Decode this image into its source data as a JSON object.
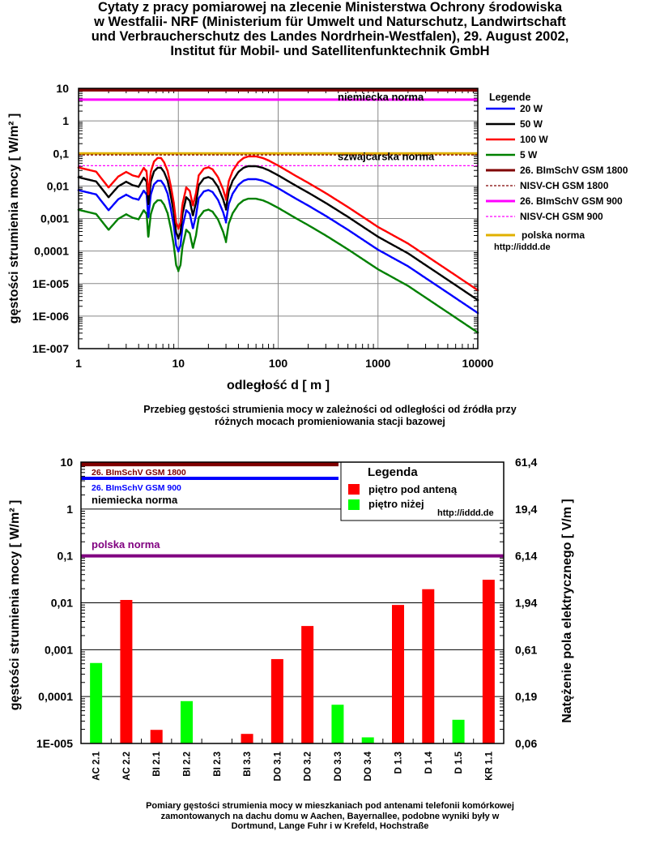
{
  "title_lines": [
    "Cytaty z pracy pomiarowej na zlecenie Ministerstwa Ochrony środowiska",
    "w Westfalii- NRF (Ministerium für Umwelt und Naturschutz, Landwirtschaft",
    "und Verbraucherschutz des Landes Nordrhein-Westfalen), 29. August 2002,",
    "Institut für Mobil- und Satellitenfunktechnik GmbH"
  ],
  "caption1_lines": [
    "Przebieg gęstości strumienia mocy w zależności od odległości od źródła przy",
    "różnych mocach promieniowania stacji bazowej"
  ],
  "caption2_lines": [
    "Pomiary gęstości strumienia mocy w mieszkaniach pod antenami telefonii komórkowej",
    "zamontowanych na dachu domu w Aachen, Bayernallee, podobne wyniki były w",
    "Dortmund, Lange Fuhr i w Krefeld, Hochstraße"
  ],
  "chart_data": [
    {
      "type": "line",
      "title": "",
      "xlabel": "odległość d [ m ]",
      "ylabel": "gęstości strumienia mocy [ W/m² ]",
      "xscale": "log",
      "yscale": "log",
      "xlim": [
        1,
        10000
      ],
      "ylim": [
        1e-07,
        10
      ],
      "xticks": [
        "1",
        "10",
        "100",
        "1000",
        "10000"
      ],
      "yticks": [
        "10",
        "1",
        "0,1",
        "0,01",
        "0,001",
        "0,0001",
        "1E-005",
        "1E-006",
        "1E-007"
      ],
      "grid": true,
      "legend_title": "Legende",
      "legend_url": "http://iddd.de",
      "annotations": [
        "niemiecka norma",
        "szwajcarska norma"
      ],
      "base_profile": {
        "x": [
          1,
          1.5,
          2,
          2.5,
          3,
          3.5,
          4,
          4.5,
          4.8,
          5,
          5.3,
          5.7,
          6.2,
          6.7,
          7.2,
          7.8,
          8.4,
          9,
          9.5,
          10,
          10.5,
          11,
          12,
          13,
          14,
          15,
          16,
          18,
          20,
          22,
          25,
          28,
          30,
          32,
          35,
          40,
          45,
          50,
          60,
          70,
          80,
          100,
          150,
          200,
          300,
          500,
          1000,
          2000,
          5000,
          10000
        ],
        "y": [
          0.0074,
          0.0055,
          0.0018,
          0.0039,
          0.0054,
          0.0042,
          0.0038,
          0.0072,
          0.0055,
          0.0011,
          0.0055,
          0.0112,
          0.0145,
          0.0145,
          0.0106,
          0.0058,
          0.002,
          0.0006,
          0.00015,
          0.0001,
          0.00015,
          0.00055,
          0.0018,
          0.0014,
          0.0005,
          0.0012,
          0.0042,
          0.0068,
          0.0075,
          0.0065,
          0.0037,
          0.0016,
          0.0008,
          0.0028,
          0.0058,
          0.0108,
          0.0145,
          0.0162,
          0.0162,
          0.0145,
          0.0122,
          0.0085,
          0.0041,
          0.0025,
          0.0012,
          0.00045,
          0.00011,
          3.4e-05,
          5.2e-06,
          1.25e-06
        ]
      },
      "series": [
        {
          "name": "20 W",
          "color": "#0000ff",
          "scale": 1
        },
        {
          "name": "50 W",
          "color": "#000000",
          "scale": 2.5
        },
        {
          "name": "100 W",
          "color": "#ff0000",
          "scale": 5
        },
        {
          "name": "5 W",
          "color": "#008000",
          "scale": 0.25
        }
      ],
      "reference_lines": [
        {
          "name": "26. BImSchV GSM 1800",
          "value": 9,
          "color": "#800000",
          "style": "solid"
        },
        {
          "name": "NISV-CH GSM 1800",
          "value": 0.09,
          "color": "#800000",
          "style": "dashed"
        },
        {
          "name": "26. BImSchV GSM 900",
          "value": 4.5,
          "color": "#ff00ff",
          "style": "solid"
        },
        {
          "name": "NISV-CH GSM 900",
          "value": 0.042,
          "color": "#ff00ff",
          "style": "dashed"
        },
        {
          "name": "polska norma",
          "value": 0.1,
          "color": "#e0b000",
          "style": "solid"
        }
      ]
    },
    {
      "type": "bar",
      "ylabel": "gęstości strumienia mocy [ W/m² ]",
      "ylabel_right": "Natężenie pola elektrycznego [ V/m ]",
      "yscale": "log",
      "ylim": [
        1e-05,
        10
      ],
      "yticks": [
        "10",
        "1",
        "0,1",
        "0,01",
        "0,001",
        "0,0001",
        "1E-005"
      ],
      "yticks_right": [
        "61,4",
        "19,4",
        "6,14",
        "1,94",
        "0,61",
        "0,19",
        "0,06"
      ],
      "legend_title": "Legenda",
      "legend_url": "http://iddd.de",
      "annotations": [
        "niemiecka norma"
      ],
      "categories": [
        "AC 2.1",
        "AC 2.2",
        "BI 2.1",
        "BI 2.2",
        "BI 2.3",
        "BI 3.3",
        "DO 3.1",
        "DO 3.2",
        "DO 3.3",
        "DO 3.4",
        "D 1.3",
        "D 1.4",
        "D 1.5",
        "KR 1.1"
      ],
      "series_names": [
        "piętro pod anteną",
        "piętro niżej"
      ],
      "series_colors": [
        "#ff0000",
        "#00ff00"
      ],
      "bars": [
        {
          "category": "AC 2.1",
          "series": "piętro niżej",
          "value": 0.00052
        },
        {
          "category": "AC 2.2",
          "series": "piętro pod anteną",
          "value": 0.0115
        },
        {
          "category": "BI 2.1",
          "series": "piętro pod anteną",
          "value": 1.95e-05
        },
        {
          "category": "BI 2.2",
          "series": "piętro niżej",
          "value": 8e-05
        },
        {
          "category": "BI 2.3",
          "series": "piętro pod anteną",
          "value": 1e-05
        },
        {
          "category": "BI 3.3",
          "series": "piętro pod anteną",
          "value": 1.6e-05
        },
        {
          "category": "DO 3.1",
          "series": "piętro pod anteną",
          "value": 0.00063
        },
        {
          "category": "DO 3.2",
          "series": "piętro pod anteną",
          "value": 0.0032
        },
        {
          "category": "DO 3.3",
          "series": "piętro niżej",
          "value": 6.7e-05
        },
        {
          "category": "DO 3.4",
          "series": "piętro niżej",
          "value": 1.35e-05
        },
        {
          "category": "D 1.3",
          "series": "piętro pod anteną",
          "value": 0.009
        },
        {
          "category": "D 1.4",
          "series": "piętro pod anteną",
          "value": 0.0195
        },
        {
          "category": "D 1.5",
          "series": "piętro niżej",
          "value": 3.2e-05
        },
        {
          "category": "KR 1.1",
          "series": "piętro pod anteną",
          "value": 0.031
        }
      ],
      "reference_lines": [
        {
          "name": "26. BImSchV GSM 1800",
          "value": 9,
          "color": "#800000"
        },
        {
          "name": "26. BImSchV GSM 900",
          "value": 4.5,
          "color": "#0000ff"
        },
        {
          "name": "polska norma",
          "value": 0.1,
          "color": "#800080"
        }
      ]
    }
  ]
}
